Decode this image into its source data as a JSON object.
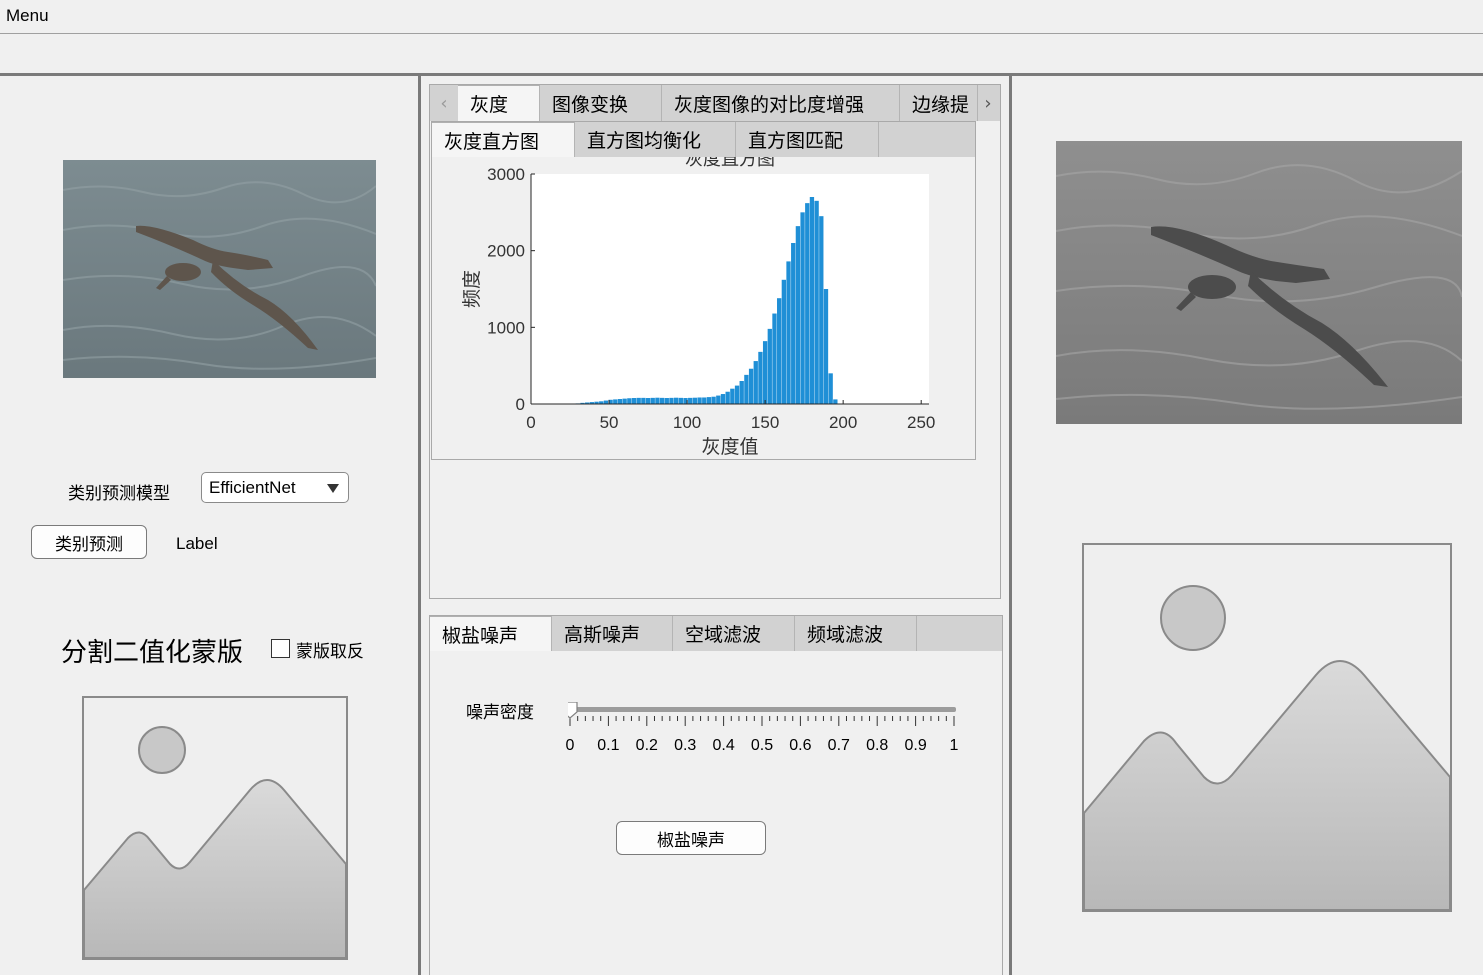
{
  "menu": {
    "label": "Menu"
  },
  "left_panel": {
    "model_label": "类别预测模型",
    "model_select_value": "EfficientNet",
    "predict_button": "类别预测",
    "result_label": "Label",
    "mask_title": "分割二值化蒙版",
    "invert_mask_label": "蒙版取反",
    "invert_mask_checked": false
  },
  "top_tabs": {
    "labels": [
      "灰度",
      "图像变换",
      "灰度图像的对比度增强",
      "边缘提"
    ],
    "active": 0
  },
  "sub_tabs": {
    "labels": [
      "灰度直方图",
      "直方图均衡化",
      "直方图匹配"
    ],
    "active": 0
  },
  "noise_tabs": {
    "labels": [
      "椒盐噪声",
      "高斯噪声",
      "空域滤波",
      "频域滤波"
    ],
    "active": 0
  },
  "noise_panel": {
    "slider_label": "噪声密度",
    "slider_value": 0,
    "slider_ticks": [
      "0",
      "0.1",
      "0.2",
      "0.3",
      "0.4",
      "0.5",
      "0.6",
      "0.7",
      "0.8",
      "0.9",
      "1"
    ],
    "apply_button": "椒盐噪声"
  },
  "icons": {
    "tab_prev": "chevron-left-icon",
    "tab_next": "chevron-right-icon",
    "dropdown": "triangle-down-icon",
    "image_placeholder": "image-placeholder-icon"
  },
  "colors": {
    "bar": "#1f8fd6",
    "background": "#f0f0f0"
  },
  "chart_data": {
    "type": "bar",
    "title": "灰度直方图",
    "xlabel": "灰度值",
    "ylabel": "频度",
    "xlim": [
      0,
      255
    ],
    "ylim": [
      0,
      3000
    ],
    "xticks": [
      0,
      50,
      100,
      150,
      200,
      250
    ],
    "yticks": [
      0,
      1000,
      2000,
      3000
    ],
    "x": [
      30,
      33,
      36,
      39,
      42,
      45,
      48,
      51,
      54,
      57,
      60,
      63,
      66,
      69,
      72,
      75,
      78,
      81,
      84,
      87,
      90,
      93,
      96,
      99,
      102,
      105,
      108,
      111,
      114,
      117,
      120,
      123,
      126,
      129,
      132,
      135,
      138,
      141,
      144,
      147,
      150,
      153,
      156,
      159,
      162,
      165,
      168,
      171,
      174,
      177,
      180,
      183,
      186,
      189,
      192,
      195
    ],
    "values": [
      8,
      15,
      20,
      25,
      30,
      35,
      45,
      55,
      60,
      65,
      70,
      75,
      78,
      80,
      80,
      78,
      80,
      82,
      80,
      78,
      80,
      82,
      80,
      78,
      80,
      82,
      85,
      85,
      90,
      95,
      110,
      130,
      160,
      200,
      240,
      300,
      380,
      460,
      560,
      680,
      820,
      980,
      1180,
      1380,
      1620,
      1860,
      2100,
      2320,
      2500,
      2620,
      2700,
      2650,
      2450,
      1500,
      400,
      60
    ]
  }
}
